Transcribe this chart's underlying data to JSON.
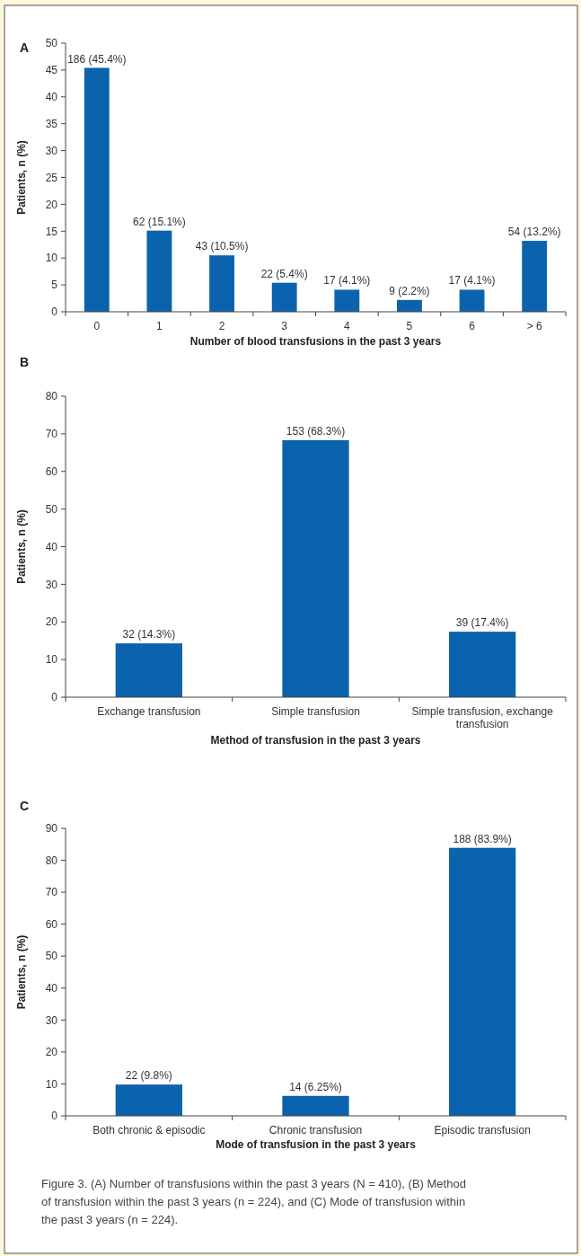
{
  "chart_data": [
    {
      "type": "bar",
      "title": "A",
      "xlabel": "Number of blood transfusions in the past 3 years",
      "ylabel": "Patients, n (%)",
      "categories": [
        "0",
        "1",
        "2",
        "3",
        "4",
        "5",
        "6",
        "> 6"
      ],
      "values": [
        45.4,
        15.1,
        10.5,
        5.4,
        4.1,
        2.2,
        4.1,
        13.2
      ],
      "value_labels": [
        "186 (45.4%)",
        "62 (15.1%)",
        "43 (10.5%)",
        "22 (5.4%)",
        "17 (4.1%)",
        "9 (2.2%)",
        "17 (4.1%)",
        "54 (13.2%)"
      ],
      "color": "#0b63ad",
      "ylim": [
        0,
        50
      ],
      "yticks": [
        0,
        5,
        10,
        15,
        20,
        25,
        30,
        35,
        40,
        45,
        50
      ],
      "grid": false
    },
    {
      "type": "bar",
      "title": "B",
      "xlabel": "Method of transfusion in the past 3 years",
      "ylabel": "Patients, n (%)",
      "categories": [
        "Exchange transfusion",
        "Simple transfusion",
        "Simple transfusion, exchange transfusion"
      ],
      "values": [
        14.3,
        68.3,
        17.4
      ],
      "value_labels": [
        "32 (14.3%)",
        "153 (68.3%)",
        "39 (17.4%)"
      ],
      "color": "#0b63ad",
      "ylim": [
        0,
        80
      ],
      "yticks": [
        0,
        10,
        20,
        30,
        40,
        50,
        60,
        70,
        80
      ],
      "grid": false
    },
    {
      "type": "bar",
      "title": "C",
      "xlabel": "Mode of transfusion in the past 3 years",
      "ylabel": "Patients, n (%)",
      "categories": [
        "Both chronic & episodic",
        "Chronic transfusion",
        "Episodic transfusion"
      ],
      "values": [
        9.8,
        6.25,
        83.9
      ],
      "value_labels": [
        "22 (9.8%)",
        "14 (6.25%)",
        "188 (83.9%)"
      ],
      "color": "#0b63ad",
      "ylim": [
        0,
        90
      ],
      "yticks": [
        0,
        10,
        20,
        30,
        40,
        50,
        60,
        70,
        80,
        90
      ],
      "grid": false,
      "annotations": [
        "Figure 3. (A) Number of transfusions within the past 3 years (N = 410), (B) Method of transfusion within the past 3 years (n = 224), and (C) Mode of transfusion within the past 3 years (n = 224)."
      ]
    }
  ]
}
